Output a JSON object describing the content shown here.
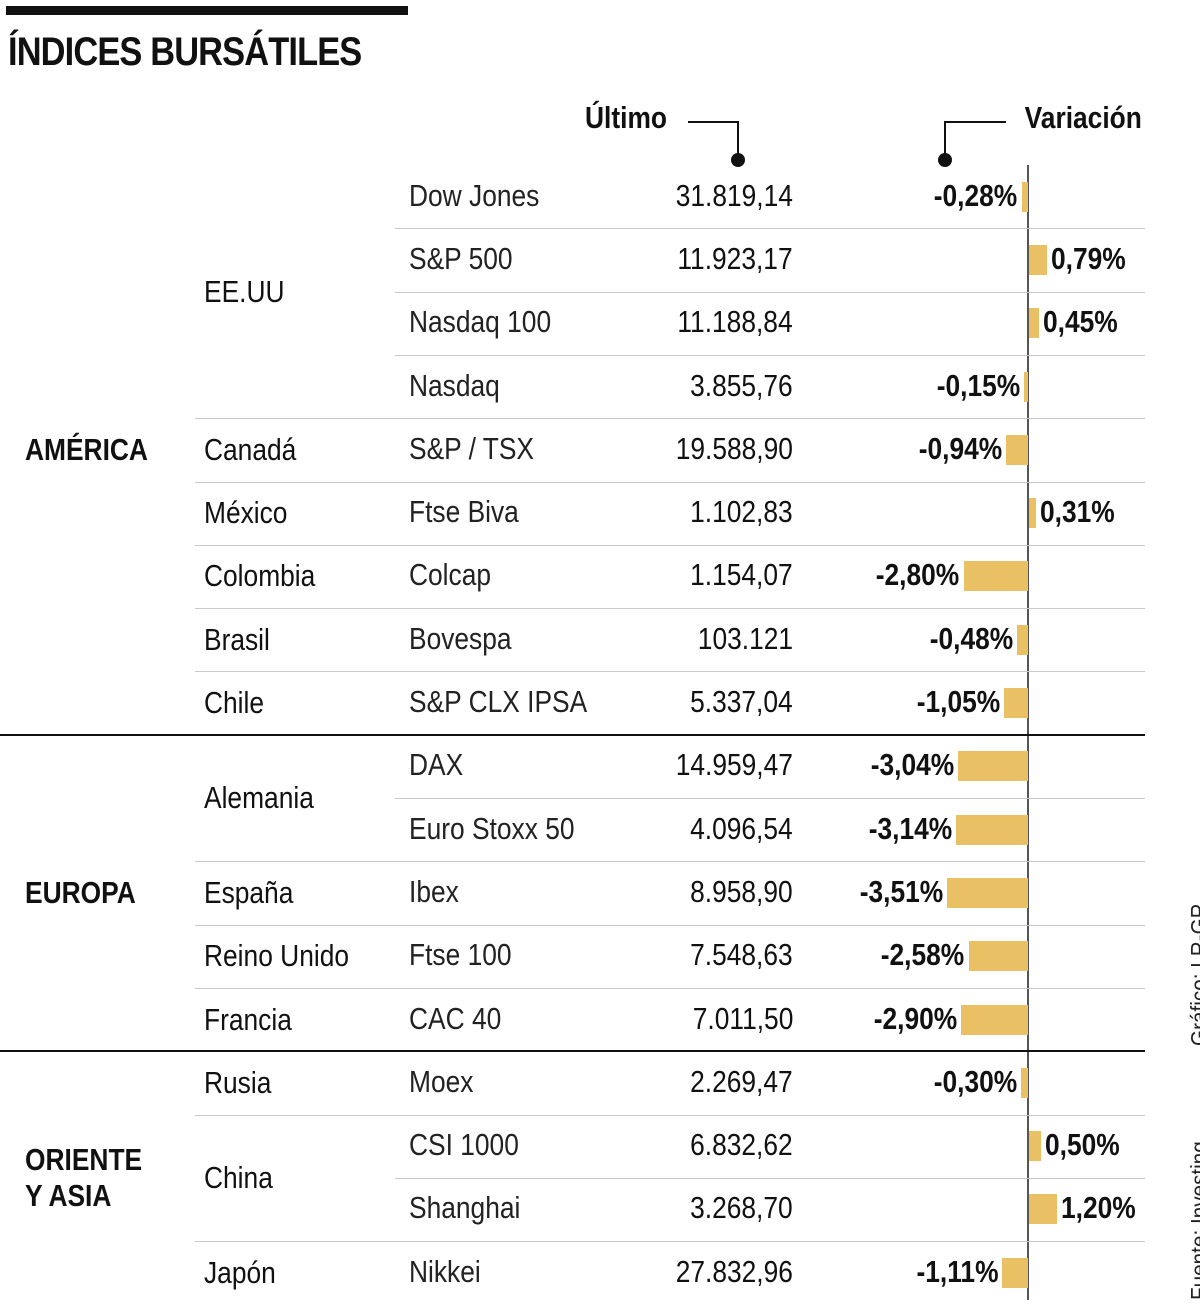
{
  "title": "ÍNDICES BURSÁTILES",
  "columns": {
    "last": "Último",
    "change": "Variación"
  },
  "regions": [
    "AMÉRICA",
    "EUROPA",
    "ORIENTE\nY ASIA"
  ],
  "countries": [
    "EE.UU",
    "Canadá",
    "México",
    "Colombia",
    "Brasil",
    "Chile",
    "Alemania",
    "España",
    "Reino Unido",
    "Francia",
    "Rusia",
    "China",
    "Japón"
  ],
  "source": "Fuente: Investing",
  "credit": "Gráfico: LR-GR",
  "colors": {
    "bar": "#e9c063",
    "text": "#111111",
    "separator": "#c8c8c8"
  },
  "chart_data": {
    "type": "table",
    "title": "ÍNDICES BURSÁTILES",
    "columns": [
      "Último",
      "Variación"
    ],
    "rows": [
      {
        "region": "AMÉRICA",
        "country": "EE.UU",
        "index": "Dow Jones",
        "last": "31.819,14",
        "change_label": "-0,28%",
        "change": -0.28
      },
      {
        "region": "AMÉRICA",
        "country": "EE.UU",
        "index": "S&P 500",
        "last": "11.923,17",
        "change_label": "0,79%",
        "change": 0.79
      },
      {
        "region": "AMÉRICA",
        "country": "EE.UU",
        "index": "Nasdaq 100",
        "last": "11.188,84",
        "change_label": "0,45%",
        "change": 0.45
      },
      {
        "region": "AMÉRICA",
        "country": "EE.UU",
        "index": "Nasdaq",
        "last": "3.855,76",
        "change_label": "-0,15%",
        "change": -0.15
      },
      {
        "region": "AMÉRICA",
        "country": "Canadá",
        "index": "S&P / TSX",
        "last": "19.588,90",
        "change_label": "-0,94%",
        "change": -0.94
      },
      {
        "region": "AMÉRICA",
        "country": "México",
        "index": "Ftse Biva",
        "last": "1.102,83",
        "change_label": "0,31%",
        "change": 0.31
      },
      {
        "region": "AMÉRICA",
        "country": "Colombia",
        "index": "Colcap",
        "last": "1.154,07",
        "change_label": "-2,80%",
        "change": -2.8
      },
      {
        "region": "AMÉRICA",
        "country": "Brasil",
        "index": "Bovespa",
        "last": "103.121",
        "change_label": "-0,48%",
        "change": -0.48
      },
      {
        "region": "AMÉRICA",
        "country": "Chile",
        "index": "S&P CLX IPSA",
        "last": "5.337,04",
        "change_label": "-1,05%",
        "change": -1.05
      },
      {
        "region": "EUROPA",
        "country": "Alemania",
        "index": "DAX",
        "last": "14.959,47",
        "change_label": "-3,04%",
        "change": -3.04
      },
      {
        "region": "EUROPA",
        "country": "Alemania",
        "index": "Euro Stoxx 50",
        "last": "4.096,54",
        "change_label": "-3,14%",
        "change": -3.14
      },
      {
        "region": "EUROPA",
        "country": "España",
        "index": "Ibex",
        "last": "8.958,90",
        "change_label": "-3,51%",
        "change": -3.51
      },
      {
        "region": "EUROPA",
        "country": "Reino Unido",
        "index": "Ftse 100",
        "last": "7.548,63",
        "change_label": "-2,58%",
        "change": -2.58
      },
      {
        "region": "EUROPA",
        "country": "Francia",
        "index": "CAC 40",
        "last": "7.011,50",
        "change_label": "-2,90%",
        "change": -2.9
      },
      {
        "region": "ORIENTE Y ASIA",
        "country": "Rusia",
        "index": "Moex",
        "last": "2.269,47",
        "change_label": "-0,30%",
        "change": -0.3
      },
      {
        "region": "ORIENTE Y ASIA",
        "country": "China",
        "index": "CSI 1000",
        "last": "6.832,62",
        "change_label": "0,50%",
        "change": 0.5
      },
      {
        "region": "ORIENTE Y ASIA",
        "country": "China",
        "index": "Shanghai",
        "last": "3.268,70",
        "change_label": "1,20%",
        "change": 1.2
      },
      {
        "region": "ORIENTE Y ASIA",
        "country": "Japón",
        "index": "Nikkei",
        "last": "27.832,96",
        "change_label": "-1,11%",
        "change": -1.11
      }
    ]
  }
}
